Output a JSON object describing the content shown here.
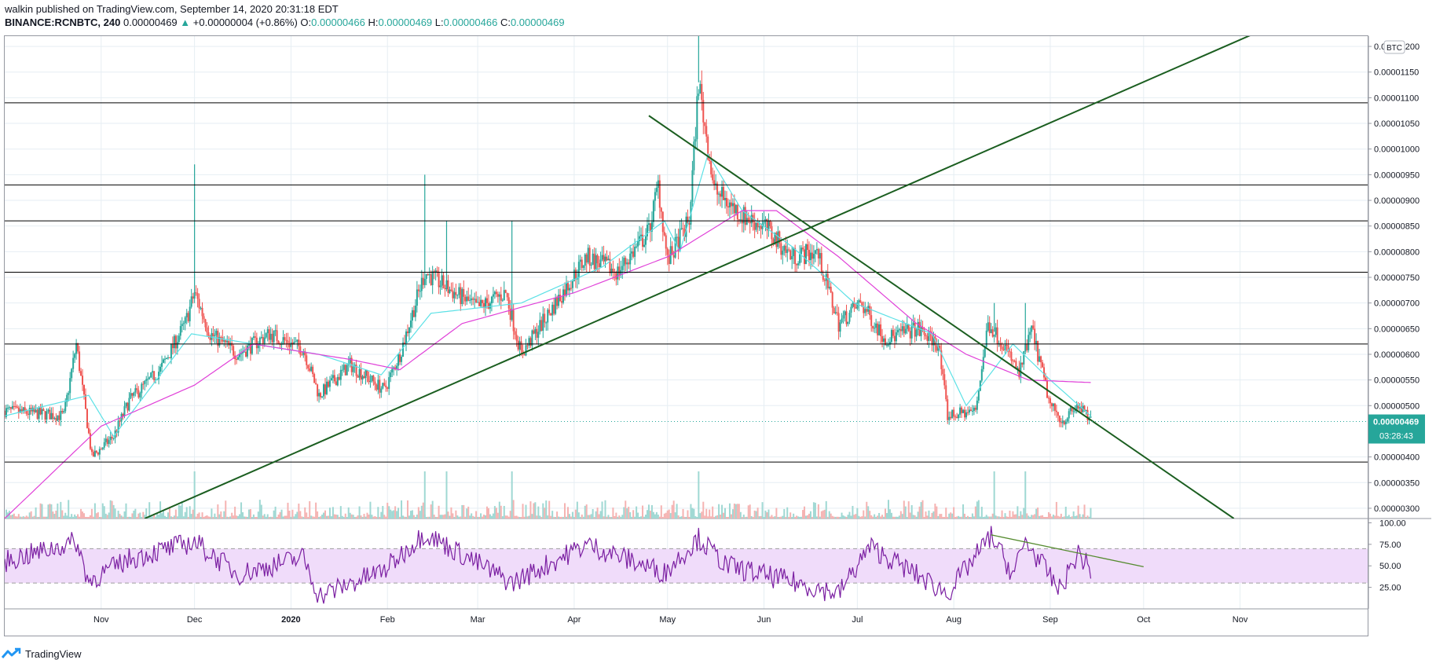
{
  "header": {
    "published_line": "walkin published on TradingView.com, September 14, 2020 20:31:18 EDT",
    "symbol": "BINANCE:RCNBTC, 240",
    "last": "0.00000469",
    "change_arrow": "▲",
    "change": "+0.00000004 (+0.86%)",
    "o_label": "O:",
    "o_value": "0.00000466",
    "h_label": "H:",
    "h_value": "0.00000469",
    "l_label": "L:",
    "l_value": "0.00000466",
    "c_label": "C:",
    "c_value": "0.00000469"
  },
  "footer": {
    "brand": "TradingView",
    "logo_icon": "tradingview-logo-icon"
  },
  "colors": {
    "up": "#26a69a",
    "down": "#ef5350",
    "ma_fast": "#5ce1e6",
    "ma_slow": "#e040d8",
    "trendline": "#1b5e20",
    "hline": "#000000",
    "rsi": "#7b1fa2",
    "rsi_band": "#f0dcfa",
    "grid": "#e6eef3"
  },
  "chart_data": {
    "type": "candlestick",
    "currency_badge": "BTC",
    "price_axis": {
      "range": [
        2.8e-06,
        1.22e-05
      ],
      "ticks": [
        "0.00001200",
        "0.00001150",
        "0.00001100",
        "0.00001050",
        "0.00001000",
        "0.00000950",
        "0.00000900",
        "0.00000850",
        "0.00000800",
        "0.00000750",
        "0.00000700",
        "0.00000650",
        "0.00000600",
        "0.00000550",
        "0.00000500",
        "0.00000400",
        "0.00000350",
        "0.00000300"
      ],
      "last_price_label": "0.00000469",
      "countdown_label": "03:28:43"
    },
    "time_axis": {
      "labels": [
        "Nov",
        "Dec",
        "2020",
        "Feb",
        "Mar",
        "Apr",
        "May",
        "Jun",
        "Jul",
        "Aug",
        "Sep",
        "Oct",
        "Nov"
      ],
      "label_dates": [
        "2019-11-01",
        "2019-12-01",
        "2020-01-01",
        "2020-02-01",
        "2020-03-01",
        "2020-04-01",
        "2020-05-01",
        "2020-06-01",
        "2020-07-01",
        "2020-08-01",
        "2020-09-01",
        "2020-10-01",
        "2020-11-01"
      ],
      "range": [
        "2019-10-01",
        "2020-12-12"
      ]
    },
    "price_keypoints": [
      {
        "date": "2019-10-01",
        "price": 4.9e-06
      },
      {
        "date": "2019-10-20",
        "price": 4.8e-06
      },
      {
        "date": "2019-10-24",
        "price": 6.2e-06
      },
      {
        "date": "2019-10-29",
        "price": 4e-06
      },
      {
        "date": "2019-11-05",
        "price": 4.4e-06
      },
      {
        "date": "2019-11-10",
        "price": 5.1e-06
      },
      {
        "date": "2019-11-20",
        "price": 5.7e-06
      },
      {
        "date": "2019-11-28",
        "price": 6.6e-06
      },
      {
        "date": "2019-12-01",
        "price": 7.2e-06
      },
      {
        "date": "2019-12-06",
        "price": 6.4e-06
      },
      {
        "date": "2019-12-15",
        "price": 6e-06
      },
      {
        "date": "2019-12-25",
        "price": 6.4e-06
      },
      {
        "date": "2020-01-05",
        "price": 6.1e-06
      },
      {
        "date": "2020-01-10",
        "price": 5.2e-06
      },
      {
        "date": "2020-01-20",
        "price": 5.8e-06
      },
      {
        "date": "2020-01-31",
        "price": 5.3e-06
      },
      {
        "date": "2020-02-05",
        "price": 6e-06
      },
      {
        "date": "2020-02-13",
        "price": 7.6e-06
      },
      {
        "date": "2020-02-20",
        "price": 7.3e-06
      },
      {
        "date": "2020-03-01",
        "price": 6.9e-06
      },
      {
        "date": "2020-03-10",
        "price": 7.2e-06
      },
      {
        "date": "2020-03-15",
        "price": 6e-06
      },
      {
        "date": "2020-03-25",
        "price": 6.9e-06
      },
      {
        "date": "2020-04-05",
        "price": 7.9e-06
      },
      {
        "date": "2020-04-15",
        "price": 7.6e-06
      },
      {
        "date": "2020-04-25",
        "price": 8.4e-06
      },
      {
        "date": "2020-04-28",
        "price": 9.3e-06
      },
      {
        "date": "2020-05-01",
        "price": 7.8e-06
      },
      {
        "date": "2020-05-08",
        "price": 8.6e-06
      },
      {
        "date": "2020-05-11",
        "price": 1.13e-05
      },
      {
        "date": "2020-05-16",
        "price": 9.2e-06
      },
      {
        "date": "2020-05-25",
        "price": 8.7e-06
      },
      {
        "date": "2020-06-01",
        "price": 8.5e-06
      },
      {
        "date": "2020-06-10",
        "price": 7.9e-06
      },
      {
        "date": "2020-06-18",
        "price": 8e-06
      },
      {
        "date": "2020-06-25",
        "price": 6.6e-06
      },
      {
        "date": "2020-07-02",
        "price": 7e-06
      },
      {
        "date": "2020-07-10",
        "price": 6.3e-06
      },
      {
        "date": "2020-07-20",
        "price": 6.5e-06
      },
      {
        "date": "2020-07-27",
        "price": 6.2e-06
      },
      {
        "date": "2020-07-30",
        "price": 4.8e-06
      },
      {
        "date": "2020-08-08",
        "price": 4.9e-06
      },
      {
        "date": "2020-08-12",
        "price": 6.6e-06
      },
      {
        "date": "2020-08-17",
        "price": 6.2e-06
      },
      {
        "date": "2020-08-22",
        "price": 5.6e-06
      },
      {
        "date": "2020-08-26",
        "price": 6.5e-06
      },
      {
        "date": "2020-09-01",
        "price": 5e-06
      },
      {
        "date": "2020-09-05",
        "price": 4.7e-06
      },
      {
        "date": "2020-09-10",
        "price": 5e-06
      },
      {
        "date": "2020-09-14",
        "price": 4.69e-06
      }
    ],
    "spikes": [
      {
        "date": "2019-12-01",
        "high": 9.7e-06
      },
      {
        "date": "2020-02-13",
        "high": 9.5e-06
      },
      {
        "date": "2020-02-20",
        "high": 8.6e-06
      },
      {
        "date": "2020-03-12",
        "high": 8.6e-06
      },
      {
        "date": "2020-05-11",
        "high": 1.22e-05
      },
      {
        "date": "2020-08-14",
        "high": 7e-06
      },
      {
        "date": "2020-08-24",
        "high": 7e-06
      }
    ],
    "ma_fast_keypoints": [
      {
        "date": "2019-10-01",
        "price": 4.8e-06
      },
      {
        "date": "2019-10-28",
        "price": 5.2e-06
      },
      {
        "date": "2019-11-05",
        "price": 4.4e-06
      },
      {
        "date": "2019-11-30",
        "price": 6.4e-06
      },
      {
        "date": "2019-12-20",
        "price": 6.2e-06
      },
      {
        "date": "2020-01-10",
        "price": 6e-06
      },
      {
        "date": "2020-01-30",
        "price": 5.6e-06
      },
      {
        "date": "2020-02-15",
        "price": 6.8e-06
      },
      {
        "date": "2020-03-15",
        "price": 7e-06
      },
      {
        "date": "2020-04-10",
        "price": 7.7e-06
      },
      {
        "date": "2020-04-30",
        "price": 8.6e-06
      },
      {
        "date": "2020-05-05",
        "price": 8e-06
      },
      {
        "date": "2020-05-14",
        "price": 9.9e-06
      },
      {
        "date": "2020-05-25",
        "price": 8.8e-06
      },
      {
        "date": "2020-06-10",
        "price": 8.1e-06
      },
      {
        "date": "2020-06-30",
        "price": 7e-06
      },
      {
        "date": "2020-07-25",
        "price": 6.4e-06
      },
      {
        "date": "2020-08-05",
        "price": 5e-06
      },
      {
        "date": "2020-08-20",
        "price": 6.2e-06
      },
      {
        "date": "2020-09-01",
        "price": 5.5e-06
      },
      {
        "date": "2020-09-14",
        "price": 4.8e-06
      }
    ],
    "ma_slow_keypoints": [
      {
        "date": "2019-10-01",
        "price": 2.8e-06
      },
      {
        "date": "2019-11-01",
        "price": 4.6e-06
      },
      {
        "date": "2019-12-01",
        "price": 5.4e-06
      },
      {
        "date": "2019-12-20",
        "price": 6.2e-06
      },
      {
        "date": "2020-01-20",
        "price": 5.9e-06
      },
      {
        "date": "2020-02-05",
        "price": 5.7e-06
      },
      {
        "date": "2020-02-25",
        "price": 6.6e-06
      },
      {
        "date": "2020-04-01",
        "price": 7.2e-06
      },
      {
        "date": "2020-05-01",
        "price": 7.9e-06
      },
      {
        "date": "2020-05-25",
        "price": 8.8e-06
      },
      {
        "date": "2020-06-05",
        "price": 8.8e-06
      },
      {
        "date": "2020-06-25",
        "price": 7.9e-06
      },
      {
        "date": "2020-07-20",
        "price": 6.6e-06
      },
      {
        "date": "2020-08-05",
        "price": 6e-06
      },
      {
        "date": "2020-08-25",
        "price": 5.5e-06
      },
      {
        "date": "2020-09-14",
        "price": 5.45e-06
      }
    ],
    "horizontal_levels": [
      1.09e-05,
      9.3e-06,
      8.6e-06,
      7.6e-06,
      6.2e-06,
      3.9e-06
    ],
    "trendlines": [
      {
        "from": {
          "date": "2019-11-15",
          "price": 2.8e-06
        },
        "to": {
          "date": "2020-11-15",
          "price": 1.25e-05
        }
      },
      {
        "from": {
          "date": "2020-04-25",
          "price": 1.065e-05
        },
        "to": {
          "date": "2020-10-30",
          "price": 2.8e-06
        }
      }
    ],
    "rsi": {
      "range": [
        0,
        105
      ],
      "ticks": [
        "100.00",
        "75.00",
        "50.00",
        "25.00"
      ],
      "band": [
        30,
        70
      ],
      "keypoints": [
        {
          "date": "2019-10-01",
          "value": 55
        },
        {
          "date": "2019-10-24",
          "value": 78
        },
        {
          "date": "2019-10-28",
          "value": 32
        },
        {
          "date": "2019-11-10",
          "value": 58
        },
        {
          "date": "2019-12-01",
          "value": 78
        },
        {
          "date": "2019-12-15",
          "value": 40
        },
        {
          "date": "2020-01-05",
          "value": 60
        },
        {
          "date": "2020-01-10",
          "value": 15
        },
        {
          "date": "2020-01-31",
          "value": 45
        },
        {
          "date": "2020-02-13",
          "value": 88
        },
        {
          "date": "2020-03-12",
          "value": 30
        },
        {
          "date": "2020-04-05",
          "value": 75
        },
        {
          "date": "2020-04-30",
          "value": 42
        },
        {
          "date": "2020-05-11",
          "value": 82
        },
        {
          "date": "2020-05-20",
          "value": 50
        },
        {
          "date": "2020-06-25",
          "value": 18
        },
        {
          "date": "2020-07-05",
          "value": 72
        },
        {
          "date": "2020-07-30",
          "value": 18
        },
        {
          "date": "2020-08-13",
          "value": 85
        },
        {
          "date": "2020-08-20",
          "value": 40
        },
        {
          "date": "2020-08-24",
          "value": 79
        },
        {
          "date": "2020-09-04",
          "value": 22
        },
        {
          "date": "2020-09-10",
          "value": 65
        },
        {
          "date": "2020-09-14",
          "value": 45
        }
      ],
      "divergence_line": {
        "from": {
          "date": "2020-08-13",
          "value": 86
        },
        "to": {
          "date": "2020-10-01",
          "value": 49
        }
      }
    }
  }
}
